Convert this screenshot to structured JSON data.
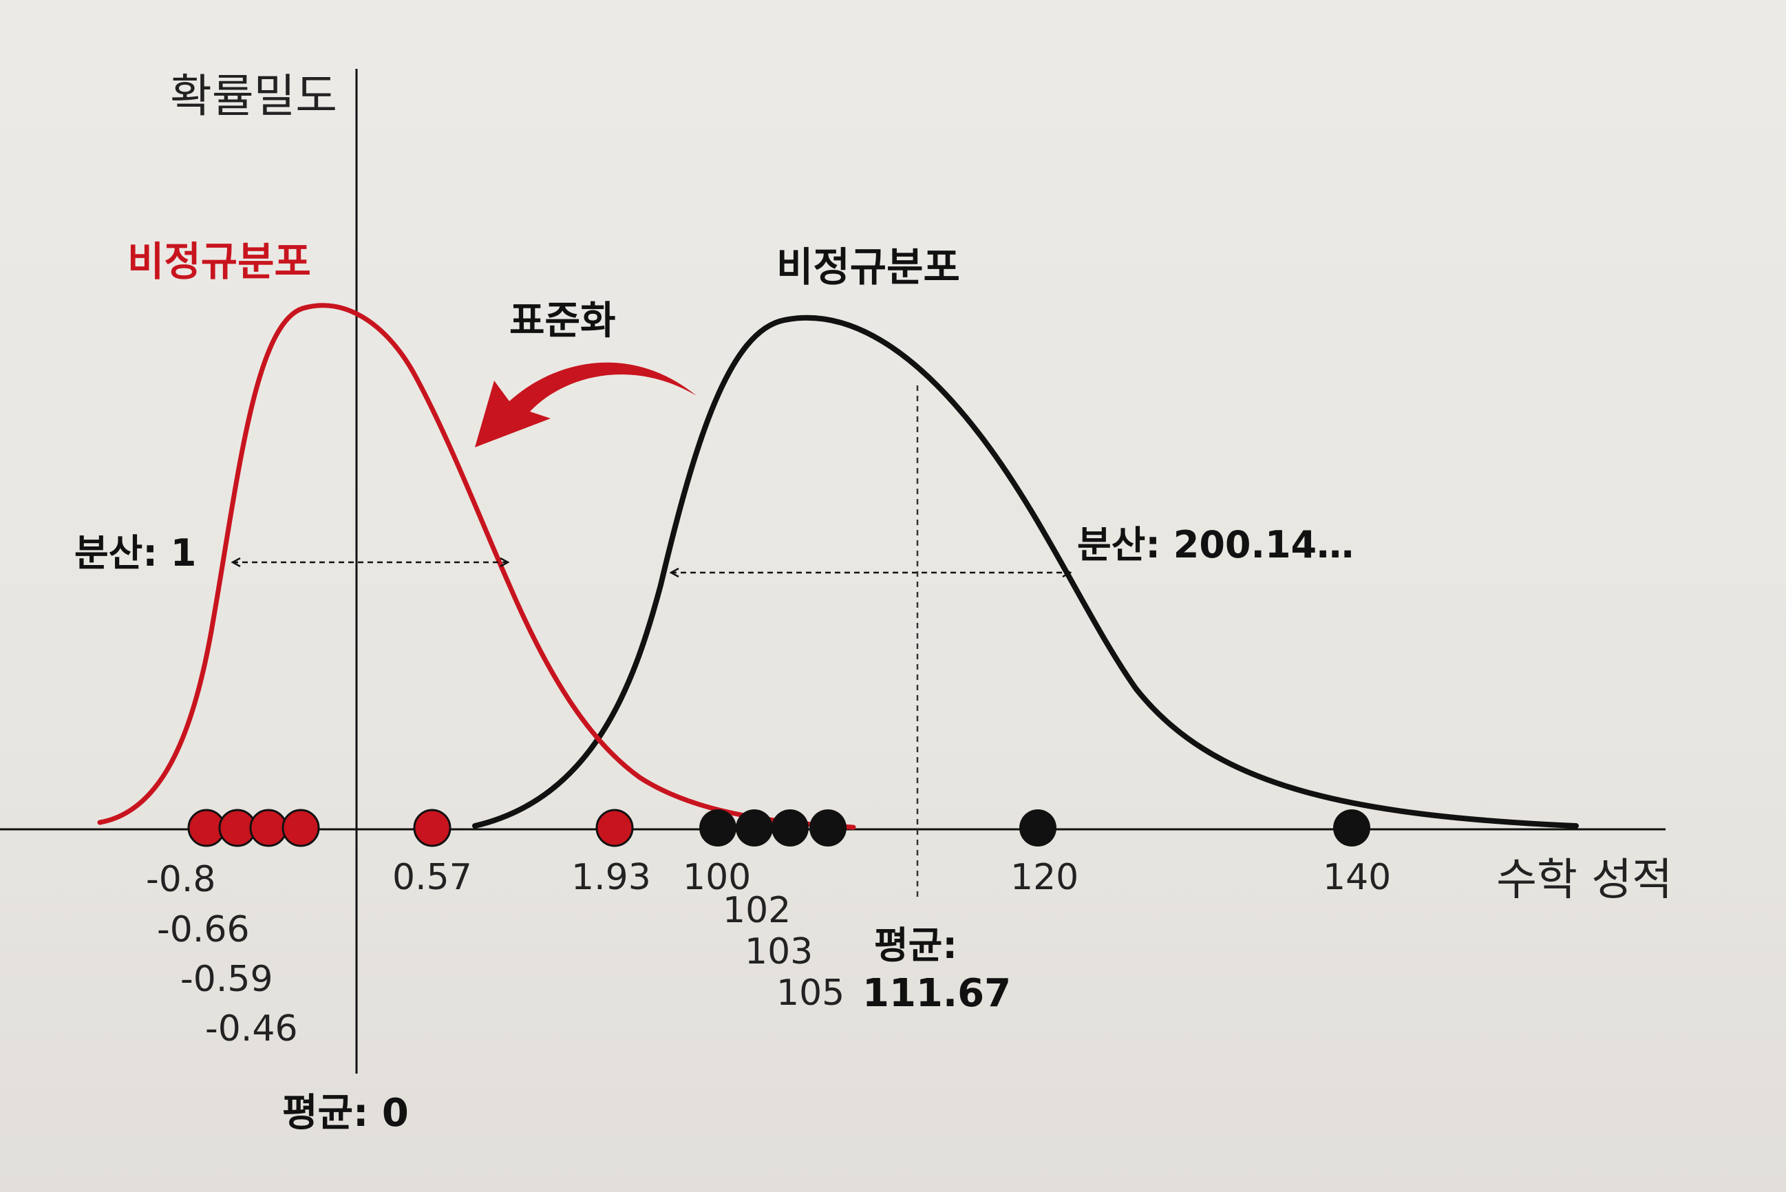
{
  "y_axis_label": "확률밀도",
  "x_axis_label": "수학 성적",
  "standardize_label": "표준화",
  "red_curve": {
    "name": "비정규분포",
    "color": "#c8141e",
    "variance_label": "분산: 1",
    "mean_label": "평균: 0",
    "points": [
      "-0.8",
      "-0.66",
      "-0.59",
      "-0.46",
      "0.57",
      "1.93"
    ]
  },
  "black_curve": {
    "name": "비정규분포",
    "color": "#111111",
    "variance_label": "분산: 200.14…",
    "mean_label_top": "평균:",
    "mean_label_value": "111.67",
    "points": [
      "100",
      "102",
      "103",
      "105",
      "120",
      "140"
    ]
  }
}
